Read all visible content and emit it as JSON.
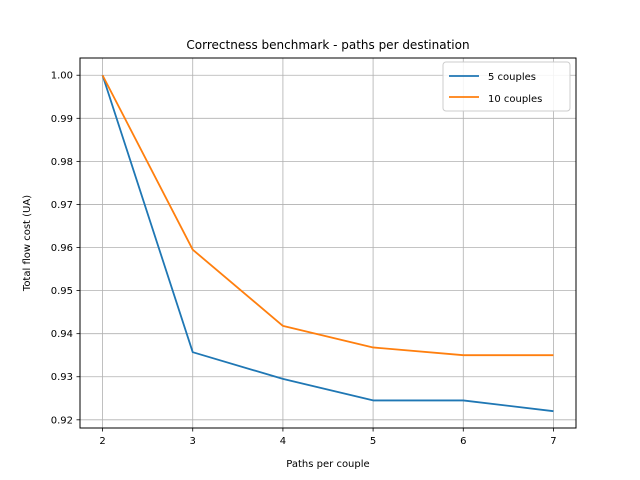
{
  "chart_data": {
    "type": "line",
    "title": "Correctness benchmark - paths per destination",
    "xlabel": "Paths per couple",
    "ylabel": "Total flow cost (UA)",
    "x": [
      2,
      3,
      4,
      5,
      6,
      7
    ],
    "xlim": [
      1.75,
      7.25
    ],
    "ylim": [
      0.9181,
      1.004
    ],
    "xticks": [
      "2",
      "3",
      "4",
      "5",
      "6",
      "7"
    ],
    "yticks": [
      "0.92",
      "0.93",
      "0.94",
      "0.95",
      "0.96",
      "0.97",
      "0.98",
      "0.99",
      "1.00"
    ],
    "grid": true,
    "legend_position": "top-right",
    "series": [
      {
        "name": "5 couples",
        "color": "#1f77b4",
        "values": [
          1.0,
          0.9357,
          0.9295,
          0.9245,
          0.9245,
          0.922
        ]
      },
      {
        "name": "10 couples",
        "color": "#ff7f0e",
        "values": [
          1.0,
          0.9595,
          0.9418,
          0.9368,
          0.935,
          0.935
        ]
      }
    ]
  }
}
